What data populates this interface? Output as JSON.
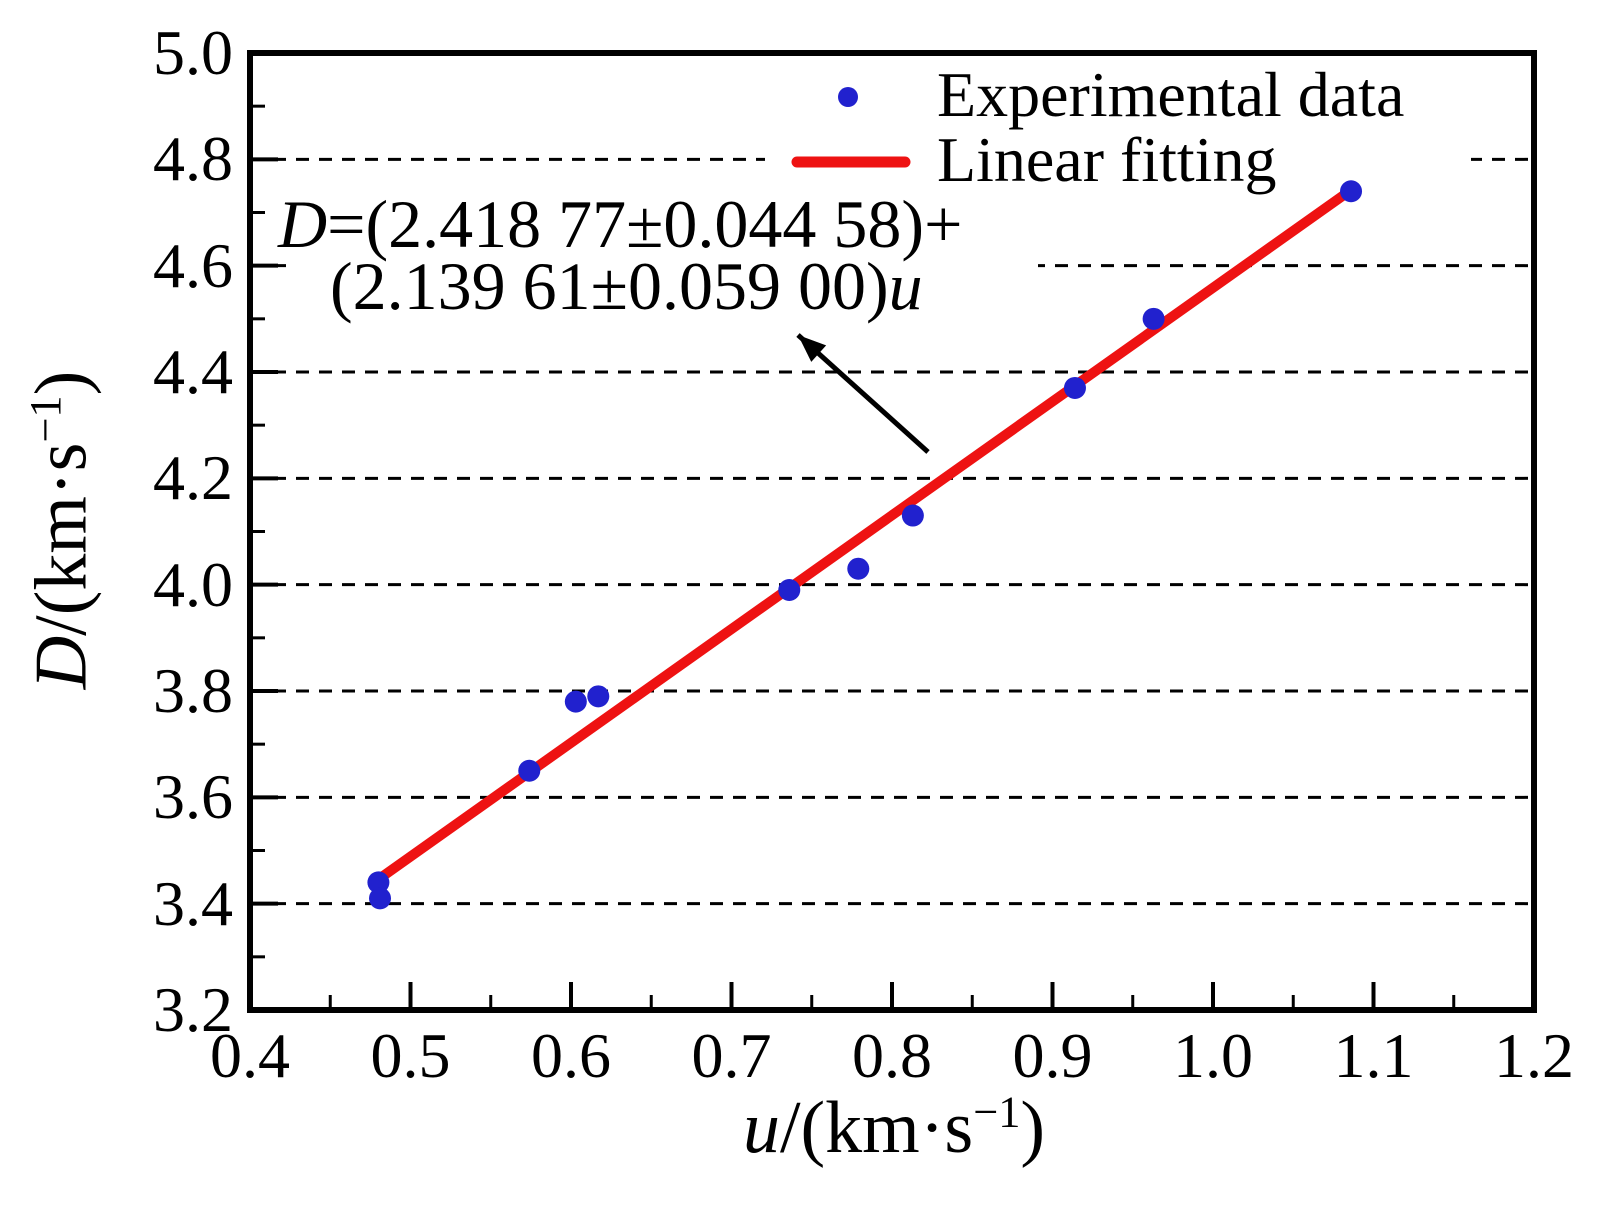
{
  "chart_data": {
    "type": "scatter",
    "title": "",
    "xlabel": "u/(km·s−1)",
    "ylabel": "D/(km·s−1)",
    "xlabel_parts": {
      "var": "u",
      "unit": "/(km·s",
      "sup": "−1",
      "close": ")"
    },
    "ylabel_parts": {
      "var": "D",
      "unit": "/(km·s",
      "sup": "−1",
      "close": ")"
    },
    "xlim": [
      0.4,
      1.2
    ],
    "ylim": [
      3.2,
      5.0
    ],
    "grid": "horizontal-dashed",
    "x_ticks": {
      "major": [
        0.4,
        0.5,
        0.6,
        0.7,
        0.8,
        0.9,
        1.0,
        1.1,
        1.2
      ],
      "labels": [
        "0.4",
        "0.5",
        "0.6",
        "0.7",
        "0.8",
        "0.9",
        "1.0",
        "1.1",
        "1.2"
      ],
      "minor": [
        0.45,
        0.55,
        0.65,
        0.75,
        0.85,
        0.95,
        1.05,
        1.15
      ]
    },
    "y_ticks": {
      "major": [
        3.2,
        3.4,
        3.6,
        3.8,
        4.0,
        4.2,
        4.4,
        4.6,
        4.8,
        5.0
      ],
      "labels": [
        "3.2",
        "3.4",
        "3.6",
        "3.8",
        "4.0",
        "4.2",
        "4.4",
        "4.6",
        "4.8",
        "5.0"
      ],
      "minor": [
        3.3,
        3.5,
        3.7,
        3.9,
        4.1,
        4.3,
        4.5,
        4.7,
        4.9
      ]
    },
    "grid_y": [
      3.4,
      3.6,
      3.8,
      4.0,
      4.2,
      4.4,
      4.6,
      4.8
    ],
    "points": [
      [
        0.48,
        3.44
      ],
      [
        0.481,
        3.41
      ],
      [
        0.574,
        3.65
      ],
      [
        0.603,
        3.78
      ],
      [
        0.617,
        3.79
      ],
      [
        0.736,
        3.99
      ],
      [
        0.779,
        4.03
      ],
      [
        0.813,
        4.13
      ],
      [
        0.914,
        4.37
      ],
      [
        0.963,
        4.5
      ],
      [
        1.086,
        4.74
      ]
    ],
    "fit": {
      "intercept": 2.41877,
      "slope": 2.13961,
      "u_start": 0.479,
      "u_end": 1.086
    },
    "colors": {
      "point": "#2121ce",
      "line": "#ee1212",
      "axis": "#000000",
      "grid": "#000000"
    },
    "legend": {
      "position": "upper-right-inside",
      "items": [
        {
          "label": "Experimental data",
          "marker": "dot"
        },
        {
          "label": "Linear fitting",
          "marker": "line"
        }
      ]
    },
    "annotation": {
      "line1_var": "D",
      "line1_text": "=(2.418 77±0.044 58)+",
      "line2_text": "(2.139 61±0.059 00)",
      "line2_var": "u"
    }
  }
}
